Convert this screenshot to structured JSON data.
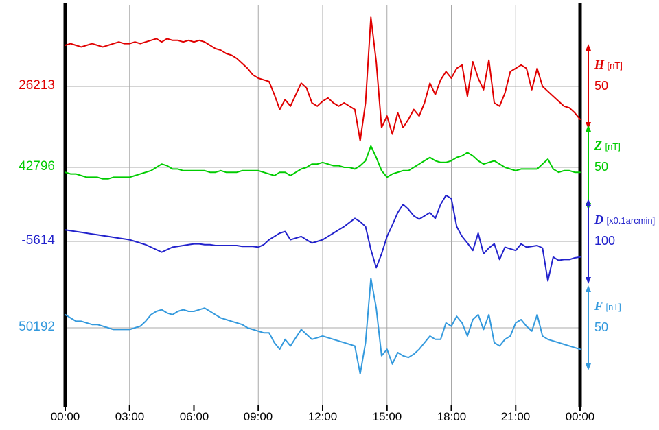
{
  "chart_data": {
    "type": "line",
    "title": "",
    "description": "Magnetogram: H, Z, D, F components over 24 hours",
    "grid": true,
    "grid_color": "#a8a8a8",
    "axis_color": "#000000",
    "x_axis": {
      "tick_labels": [
        "00:00",
        "03:00",
        "06:00",
        "09:00",
        "12:00",
        "15:00",
        "18:00",
        "21:00",
        "00:00"
      ],
      "hours": [
        0,
        3,
        6,
        9,
        12,
        15,
        18,
        21,
        24
      ],
      "range_hours": [
        0,
        24
      ]
    },
    "series": [
      {
        "name": "H",
        "unit": "[nT]",
        "color": "#e00000",
        "baseline_label": "26213",
        "baseline_value": 26213,
        "scale_label": "50",
        "sample_interval_hours": 0.25,
        "values": [
          26238,
          26239,
          26238,
          26237,
          26238,
          26239,
          26238,
          26237,
          26238,
          26239,
          26240,
          26239,
          26239,
          26240,
          26239,
          26240,
          26241,
          26242,
          26240,
          26242,
          26241,
          26241,
          26240,
          26241,
          26240,
          26241,
          26240,
          26238,
          26236,
          26235,
          26233,
          26232,
          26230,
          26227,
          26224,
          26220,
          26218,
          26217,
          26216,
          26208,
          26199,
          26205,
          26201,
          26208,
          26215,
          26212,
          26203,
          26201,
          26204,
          26206,
          26203,
          26201,
          26203,
          26201,
          26199,
          26180,
          26203,
          26255,
          26228,
          26188,
          26195,
          26184,
          26197,
          26188,
          26193,
          26199,
          26195,
          26203,
          26215,
          26208,
          26217,
          26222,
          26218,
          26224,
          26226,
          26207,
          26228,
          26218,
          26211,
          26229,
          26203,
          26201,
          26209,
          26222,
          26224,
          26226,
          26224,
          26211,
          26224,
          26213,
          26210,
          26207,
          26204,
          26201,
          26200,
          26197,
          26193
        ]
      },
      {
        "name": "Z",
        "unit": "[nT]",
        "color": "#00cc00",
        "baseline_label": "42796",
        "baseline_value": 42796,
        "scale_label": "50",
        "sample_interval_hours": 0.25,
        "values": [
          42793,
          42792,
          42792,
          42791,
          42790,
          42790,
          42790,
          42789,
          42789,
          42790,
          42790,
          42790,
          42790,
          42791,
          42792,
          42793,
          42794,
          42796,
          42798,
          42797,
          42795,
          42795,
          42794,
          42794,
          42794,
          42794,
          42794,
          42793,
          42793,
          42794,
          42793,
          42793,
          42793,
          42794,
          42794,
          42794,
          42794,
          42793,
          42792,
          42791,
          42793,
          42793,
          42791,
          42793,
          42795,
          42796,
          42798,
          42798,
          42799,
          42798,
          42797,
          42797,
          42796,
          42796,
          42795,
          42797,
          42800,
          42809,
          42802,
          42794,
          42790,
          42792,
          42793,
          42794,
          42794,
          42796,
          42798,
          42800,
          42802,
          42800,
          42799,
          42799,
          42800,
          42802,
          42803,
          42805,
          42803,
          42800,
          42798,
          42799,
          42800,
          42798,
          42796,
          42795,
          42794,
          42795,
          42795,
          42795,
          42795,
          42798,
          42801,
          42795,
          42793,
          42794,
          42794,
          42793,
          42793
        ]
      },
      {
        "name": "D",
        "unit": "[x0.1arcmin]",
        "color": "#2222cc",
        "baseline_label": "-5614",
        "baseline_value": -5614,
        "scale_label": "100",
        "sample_interval_hours": 0.25,
        "values": [
          -5600,
          -5601,
          -5602,
          -5603,
          -5604,
          -5605,
          -5606,
          -5607,
          -5608,
          -5609,
          -5610,
          -5611,
          -5612,
          -5614,
          -5616,
          -5618,
          -5621,
          -5624,
          -5627,
          -5624,
          -5621,
          -5620,
          -5619,
          -5618,
          -5617,
          -5617,
          -5618,
          -5618,
          -5619,
          -5619,
          -5619,
          -5619,
          -5619,
          -5620,
          -5620,
          -5620,
          -5621,
          -5618,
          -5612,
          -5608,
          -5604,
          -5602,
          -5612,
          -5610,
          -5608,
          -5612,
          -5616,
          -5614,
          -5612,
          -5608,
          -5604,
          -5600,
          -5596,
          -5591,
          -5586,
          -5590,
          -5596,
          -5624,
          -5646,
          -5629,
          -5608,
          -5594,
          -5579,
          -5569,
          -5575,
          -5583,
          -5587,
          -5583,
          -5579,
          -5586,
          -5569,
          -5558,
          -5562,
          -5596,
          -5608,
          -5616,
          -5625,
          -5604,
          -5629,
          -5622,
          -5617,
          -5636,
          -5621,
          -5623,
          -5625,
          -5617,
          -5621,
          -5620,
          -5619,
          -5622,
          -5662,
          -5633,
          -5637,
          -5636,
          -5636,
          -5634,
          -5633
        ]
      },
      {
        "name": "F",
        "unit": "[nT]",
        "color": "#3399dd",
        "baseline_label": "50192",
        "baseline_value": 50192,
        "scale_label": "50",
        "sample_interval_hours": 0.25,
        "values": [
          50200,
          50198,
          50196,
          50196,
          50195,
          50194,
          50194,
          50193,
          50192,
          50191,
          50191,
          50191,
          50191,
          50192,
          50193,
          50196,
          50200,
          50202,
          50203,
          50201,
          50200,
          50202,
          50203,
          50202,
          50202,
          50203,
          50204,
          50202,
          50200,
          50198,
          50197,
          50196,
          50195,
          50194,
          50192,
          50191,
          50190,
          50189,
          50189,
          50183,
          50179,
          50185,
          50181,
          50186,
          50191,
          50188,
          50185,
          50186,
          50187,
          50186,
          50185,
          50184,
          50183,
          50182,
          50181,
          50164,
          50183,
          50222,
          50204,
          50175,
          50179,
          50170,
          50177,
          50175,
          50174,
          50176,
          50179,
          50183,
          50187,
          50185,
          50185,
          50195,
          50193,
          50199,
          50195,
          50187,
          50197,
          50200,
          50191,
          50200,
          50183,
          50181,
          50185,
          50187,
          50195,
          50197,
          50193,
          50190,
          50200,
          50187,
          50185,
          50184,
          50183,
          50182,
          50181,
          50180,
          50179
        ]
      }
    ]
  }
}
